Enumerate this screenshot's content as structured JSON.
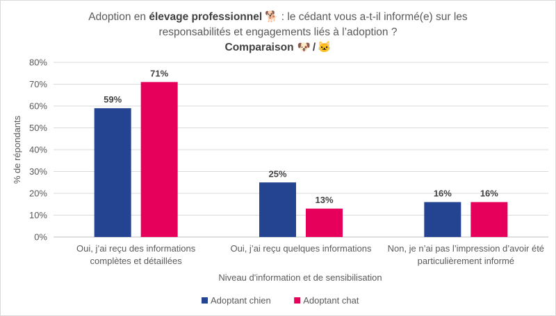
{
  "chart_data": {
    "type": "bar",
    "title_line1_pre": "Adoption en ",
    "title_line1_bold": "élevage professionnel",
    "title_line1_emoji": "🐕",
    "title_line1_post": " : le cédant vous a-t-il informé(e) sur les",
    "title_line2": "responsabilités et engagements liés à l’adoption ?",
    "subtitle_bold": "Comparaison",
    "subtitle_emoji_dog": "🐶",
    "subtitle_sep": "/",
    "subtitle_emoji_cat": "🐱",
    "xlabel": "Niveau d'information et de sensibilisation",
    "ylabel": "% de répondants",
    "ylim": [
      0,
      80
    ],
    "yticks": [
      "0%",
      "10%",
      "20%",
      "30%",
      "40%",
      "50%",
      "60%",
      "70%",
      "80%"
    ],
    "categories": [
      [
        "Oui, j’ai reçu des informations",
        "complètes et détaillées"
      ],
      [
        "Oui, j’ai reçu quelques informations"
      ],
      [
        "Non, je n’ai pas l’impression d’avoir été",
        "particulièrement informé"
      ]
    ],
    "series": [
      {
        "name": "Adoptant chien",
        "values": [
          59,
          25,
          16
        ],
        "labels": [
          "59%",
          "25%",
          "16%"
        ],
        "color": "#244491"
      },
      {
        "name": "Adoptant chat",
        "values": [
          71,
          13,
          16
        ],
        "labels": [
          "71%",
          "13%",
          "16%"
        ],
        "color": "#e6005c"
      }
    ],
    "grid": true,
    "legend_position": "bottom"
  }
}
